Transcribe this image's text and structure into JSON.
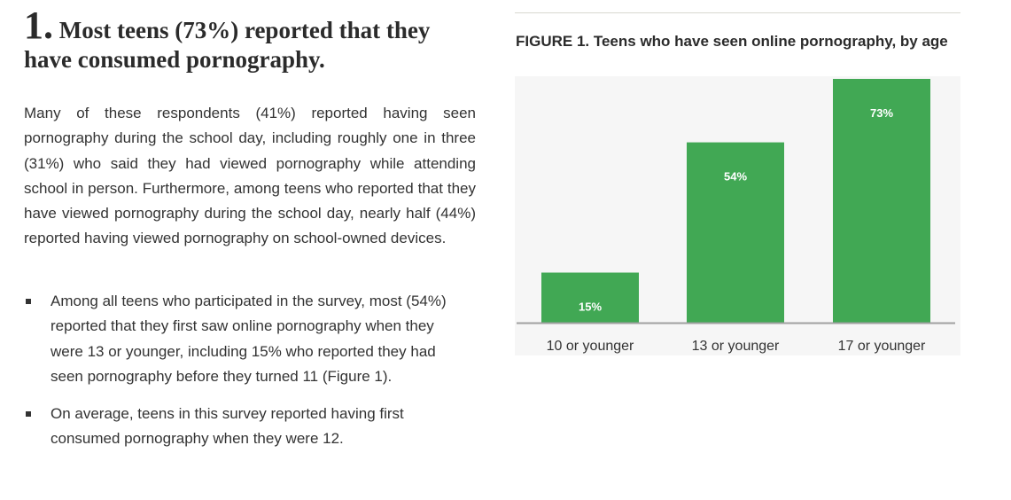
{
  "section": {
    "number": "1.",
    "heading": "Most teens (73%) reported that they have consumed pornography.",
    "paragraph": "Many of these respondents (41%) reported having seen pornography during the school day, including roughly one in three (31%) who said they had viewed pornography while attending school in person. Furthermore, among teens who reported that they have viewed pornography during the school day, nearly half (44%) reported having viewed pornography on school-owned devices.",
    "bullets": [
      "Among all teens who participated in the survey, most (54%) reported that they first saw online pornography when they were 13 or younger, including 15% who reported they had seen pornography before they turned 11 (Figure 1).",
      "On average, teens in this survey reported having first consumed pornography when they were 12."
    ]
  },
  "figure": {
    "title": "FIGURE 1. Teens who have seen online pornography, by age"
  },
  "chart_data": {
    "type": "bar",
    "title": "FIGURE 1. Teens who have seen online pornography, by age",
    "categories": [
      "10 or younger",
      "13 or younger",
      "17 or younger"
    ],
    "values": [
      15,
      54,
      73
    ],
    "data_labels": [
      "15%",
      "54%",
      "73%"
    ],
    "ylim": [
      0,
      73
    ],
    "grid": false,
    "legend": "none",
    "colors": {
      "bar": "#41a854",
      "label": "#ffffff",
      "axis": "#a0a0a0",
      "background": "#f6f6f6"
    }
  }
}
